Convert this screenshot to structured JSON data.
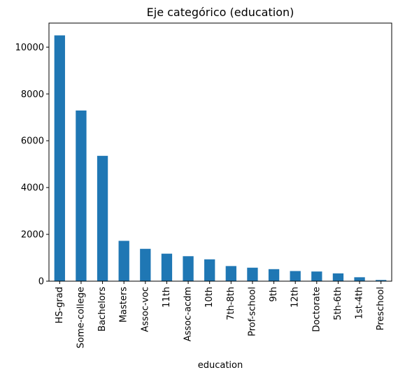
{
  "chart_data": {
    "type": "bar",
    "title": "Eje categórico (education)",
    "xlabel": "education",
    "ylabel": "",
    "categories": [
      "HS-grad",
      "Some-college",
      "Bachelors",
      "Masters",
      "Assoc-voc",
      "11th",
      "Assoc-acdm",
      "10th",
      "7th-8th",
      "Prof-school",
      "9th",
      "12th",
      "Doctorate",
      "5th-6th",
      "1st-4th",
      "Preschool"
    ],
    "values": [
      10501,
      7291,
      5355,
      1723,
      1382,
      1175,
      1067,
      933,
      646,
      576,
      514,
      433,
      413,
      333,
      168,
      51
    ],
    "yticks": [
      0,
      2000,
      4000,
      6000,
      8000,
      10000
    ],
    "ylim": [
      0,
      11026
    ],
    "grid": false,
    "legend": "none",
    "bar_color": "#1f77b4"
  }
}
